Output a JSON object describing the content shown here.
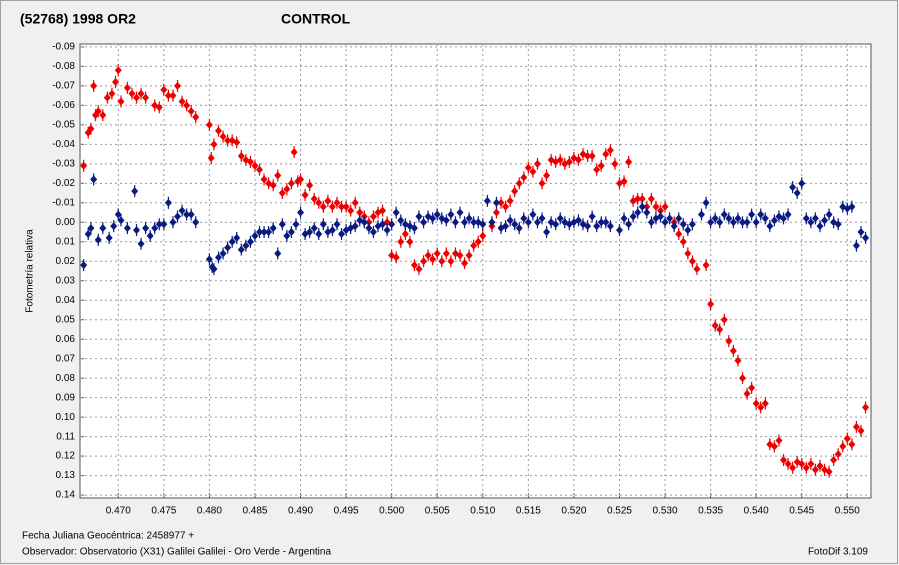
{
  "chart_data": {
    "type": "scatter",
    "ylabel": "Fotometría relativa",
    "footnotes": [
      "Fecha Juliana Geocéntrica: 2458977 +",
      "Observador: Observatorio (X31) Galilei Galilei - Oro Verde - Argentina"
    ],
    "credit": "FotoDif 3.109",
    "xlim": [
      0.4658,
      0.5526
    ],
    "ylim": [
      -0.0915,
      0.1415
    ],
    "y_inverted": true,
    "grid": true,
    "xticks": [
      {
        "value": 0.47,
        "label": "0.470"
      },
      0.475,
      {
        "value": 0.48,
        "label": "0.480"
      },
      0.485,
      {
        "value": 0.49,
        "label": "0.490"
      },
      0.495,
      {
        "value": 0.5,
        "label": "0.500"
      },
      0.505,
      {
        "value": 0.51,
        "label": "0.510"
      },
      0.515,
      {
        "value": 0.52,
        "label": "0.520"
      },
      0.525,
      {
        "value": 0.53,
        "label": "0.530"
      },
      0.535,
      {
        "value": 0.54,
        "label": "0.540"
      },
      0.545,
      {
        "value": 0.55,
        "label": "0.550"
      }
    ],
    "yticks": [
      -0.09,
      -0.08,
      -0.07,
      -0.06,
      -0.05,
      -0.04,
      -0.03,
      -0.02,
      -0.01,
      {
        "value": 0,
        "label": "0.00"
      },
      0.01,
      0.02,
      0.03,
      0.04,
      0.05,
      0.06,
      0.07,
      0.08,
      0.09,
      {
        "value": 0.1,
        "label": "0.10"
      },
      0.11,
      0.12,
      0.13,
      0.14
    ],
    "series": [
      {
        "name": "(52768) 1998 OR2",
        "color": "#ee0000",
        "x": [
          0.4662,
          0.4667,
          0.467,
          0.4673,
          0.4675,
          0.4678,
          0.4683,
          0.4688,
          0.4693,
          0.4697,
          0.47,
          0.4703,
          0.471,
          0.4715,
          0.472,
          0.4725,
          0.473,
          0.474,
          0.4745,
          0.475,
          0.4755,
          0.476,
          0.4765,
          0.477,
          0.4775,
          0.478,
          0.4785,
          0.48,
          0.4802,
          0.4805,
          0.481,
          0.4815,
          0.482,
          0.4825,
          0.483,
          0.4835,
          0.484,
          0.4845,
          0.485,
          0.4855,
          0.486,
          0.4865,
          0.487,
          0.4875,
          0.488,
          0.4885,
          0.489,
          0.4893,
          0.4897,
          0.49,
          0.4905,
          0.491,
          0.4915,
          0.492,
          0.4925,
          0.493,
          0.4935,
          0.494,
          0.4945,
          0.495,
          0.4955,
          0.496,
          0.4965,
          0.497,
          0.4975,
          0.498,
          0.4985,
          0.499,
          0.4995,
          0.5,
          0.5005,
          0.501,
          0.5015,
          0.502,
          0.5025,
          0.503,
          0.5035,
          0.504,
          0.5045,
          0.505,
          0.5055,
          0.506,
          0.5065,
          0.507,
          0.5075,
          0.508,
          0.5085,
          0.509,
          0.5095,
          0.51,
          0.511,
          0.5115,
          0.512,
          0.5125,
          0.513,
          0.5135,
          0.514,
          0.5145,
          0.515,
          0.5155,
          0.516,
          0.5165,
          0.517,
          0.5175,
          0.518,
          0.5185,
          0.519,
          0.5195,
          0.52,
          0.5205,
          0.521,
          0.5215,
          0.522,
          0.5225,
          0.523,
          0.5235,
          0.524,
          0.5245,
          0.525,
          0.5255,
          0.526,
          0.5265,
          0.527,
          0.5275,
          0.528,
          0.5285,
          0.529,
          0.5295,
          0.53,
          0.531,
          0.5315,
          0.532,
          0.5325,
          0.533,
          0.5335,
          0.5345,
          0.535,
          0.5355,
          0.536,
          0.5365,
          0.537,
          0.5375,
          0.538,
          0.5385,
          0.539,
          0.5395,
          0.54,
          0.5405,
          0.541,
          0.5415,
          0.542,
          0.5425,
          0.543,
          0.5435,
          0.544,
          0.5445,
          0.545,
          0.5455,
          0.546,
          0.5465,
          0.547,
          0.5475,
          0.548,
          0.5485,
          0.549,
          0.5495,
          0.55,
          0.5505,
          0.551,
          0.5515,
          0.552
        ],
        "values": [
          -0.029,
          -0.046,
          -0.048,
          -0.07,
          -0.055,
          -0.057,
          -0.055,
          -0.064,
          -0.066,
          -0.072,
          -0.078,
          -0.062,
          -0.069,
          -0.066,
          -0.064,
          -0.066,
          -0.064,
          -0.06,
          -0.059,
          -0.068,
          -0.065,
          -0.065,
          -0.07,
          -0.062,
          -0.06,
          -0.057,
          -0.054,
          -0.05,
          -0.033,
          -0.04,
          -0.047,
          -0.044,
          -0.042,
          -0.042,
          -0.041,
          -0.034,
          -0.032,
          -0.031,
          -0.029,
          -0.027,
          -0.022,
          -0.02,
          -0.019,
          -0.024,
          -0.015,
          -0.017,
          -0.02,
          -0.036,
          -0.021,
          -0.022,
          -0.014,
          -0.019,
          -0.012,
          -0.01,
          -0.008,
          -0.011,
          -0.008,
          -0.01,
          -0.008,
          -0.008,
          -0.006,
          -0.01,
          -0.005,
          -0.003,
          0.0,
          -0.003,
          -0.005,
          -0.006,
          0.0,
          0.017,
          0.018,
          0.01,
          0.006,
          0.01,
          0.022,
          0.024,
          0.02,
          0.017,
          0.019,
          0.016,
          0.02,
          0.016,
          0.02,
          0.016,
          0.017,
          0.021,
          0.017,
          0.012,
          0.01,
          0.007,
          0.002,
          -0.005,
          -0.01,
          -0.008,
          -0.011,
          -0.016,
          -0.02,
          -0.023,
          -0.028,
          -0.026,
          -0.03,
          -0.02,
          -0.024,
          -0.032,
          -0.031,
          -0.032,
          -0.03,
          -0.031,
          -0.033,
          -0.032,
          -0.035,
          -0.034,
          -0.034,
          -0.027,
          -0.029,
          -0.035,
          -0.037,
          -0.03,
          -0.02,
          -0.021,
          -0.031,
          -0.011,
          -0.012,
          -0.012,
          -0.008,
          -0.012,
          -0.008,
          -0.006,
          -0.008,
          0.0,
          0.006,
          0.01,
          0.016,
          0.02,
          0.024,
          0.022,
          0.042,
          0.053,
          0.055,
          0.05,
          0.061,
          0.066,
          0.071,
          0.08,
          0.088,
          0.085,
          0.093,
          0.095,
          0.093,
          0.114,
          0.115,
          0.112,
          0.122,
          0.124,
          0.126,
          0.123,
          0.124,
          0.126,
          0.124,
          0.127,
          0.125,
          0.127,
          0.128,
          0.122,
          0.119,
          0.115,
          0.111,
          0.114,
          0.105,
          0.107,
          0.095
        ]
      },
      {
        "name": "CONTROL",
        "color": "#0a1a80",
        "x": [
          0.4662,
          0.4667,
          0.467,
          0.4673,
          0.4678,
          0.4683,
          0.469,
          0.4695,
          0.47,
          0.4703,
          0.471,
          0.4718,
          0.472,
          0.4725,
          0.473,
          0.4735,
          0.474,
          0.4745,
          0.475,
          0.4755,
          0.476,
          0.4765,
          0.477,
          0.4775,
          0.478,
          0.4785,
          0.48,
          0.4803,
          0.4805,
          0.481,
          0.4815,
          0.482,
          0.4825,
          0.483,
          0.4835,
          0.484,
          0.4845,
          0.485,
          0.4855,
          0.486,
          0.4865,
          0.487,
          0.4875,
          0.488,
          0.4885,
          0.489,
          0.4895,
          0.49,
          0.4905,
          0.491,
          0.4915,
          0.492,
          0.4925,
          0.493,
          0.4935,
          0.494,
          0.4945,
          0.495,
          0.4955,
          0.496,
          0.4965,
          0.497,
          0.4975,
          0.498,
          0.4985,
          0.499,
          0.4995,
          0.5,
          0.5005,
          0.501,
          0.5015,
          0.502,
          0.5025,
          0.503,
          0.5035,
          0.504,
          0.5045,
          0.505,
          0.5055,
          0.506,
          0.5065,
          0.507,
          0.5075,
          0.508,
          0.5085,
          0.509,
          0.5095,
          0.51,
          0.5105,
          0.511,
          0.5115,
          0.512,
          0.5125,
          0.513,
          0.5135,
          0.514,
          0.5145,
          0.515,
          0.5155,
          0.516,
          0.5165,
          0.517,
          0.5175,
          0.518,
          0.5185,
          0.519,
          0.5195,
          0.52,
          0.5205,
          0.521,
          0.5215,
          0.522,
          0.5225,
          0.523,
          0.5235,
          0.524,
          0.525,
          0.5255,
          0.526,
          0.5265,
          0.527,
          0.5275,
          0.528,
          0.5285,
          0.529,
          0.5295,
          0.53,
          0.5305,
          0.531,
          0.5315,
          0.532,
          0.5325,
          0.533,
          0.534,
          0.5345,
          0.535,
          0.5355,
          0.536,
          0.5365,
          0.537,
          0.5375,
          0.538,
          0.5385,
          0.539,
          0.5395,
          0.54,
          0.5405,
          0.541,
          0.5415,
          0.542,
          0.5425,
          0.543,
          0.5435,
          0.544,
          0.5445,
          0.545,
          0.5455,
          0.546,
          0.5465,
          0.547,
          0.5475,
          0.548,
          0.5485,
          0.549,
          0.5495,
          0.55,
          0.5505,
          0.551,
          0.5515,
          0.552
        ],
        "values": [
          0.022,
          0.006,
          0.003,
          -0.022,
          0.009,
          0.003,
          0.008,
          0.002,
          -0.004,
          -0.001,
          0.003,
          -0.016,
          0.004,
          0.011,
          0.003,
          0.007,
          0.003,
          0.001,
          0.001,
          -0.01,
          0.0,
          -0.003,
          -0.006,
          -0.004,
          -0.004,
          0.0,
          0.019,
          0.023,
          0.024,
          0.018,
          0.016,
          0.013,
          0.01,
          0.008,
          0.014,
          0.012,
          0.01,
          0.007,
          0.005,
          0.005,
          0.005,
          0.003,
          0.016,
          0.001,
          0.007,
          0.005,
          0.001,
          -0.005,
          0.006,
          0.005,
          0.003,
          0.006,
          0.001,
          0.005,
          0.004,
          0.001,
          0.006,
          0.004,
          0.003,
          0.002,
          -0.001,
          0.0,
          0.003,
          0.005,
          0.002,
          0.001,
          0.004,
          0.001,
          -0.005,
          -0.001,
          0.001,
          0.002,
          0.003,
          -0.003,
          0.0,
          -0.003,
          -0.002,
          -0.004,
          -0.002,
          -0.001,
          -0.004,
          0.0,
          -0.005,
          0.0,
          -0.002,
          0.0,
          0.0,
          0.001,
          -0.011,
          0.0,
          -0.01,
          0.003,
          0.002,
          -0.001,
          0.001,
          0.003,
          -0.002,
          0.0,
          -0.004,
          0.0,
          -0.002,
          0.005,
          0.0,
          0.001,
          -0.002,
          0.0,
          0.001,
          0.0,
          -0.001,
          0.001,
          0.002,
          -0.003,
          0.002,
          0.0,
          0.0,
          0.002,
          0.004,
          -0.002,
          0.001,
          -0.003,
          -0.005,
          -0.008,
          -0.005,
          0.0,
          -0.002,
          -0.003,
          0.0,
          -0.002,
          0.002,
          -0.002,
          0.001,
          0.004,
          0.001,
          -0.004,
          -0.01,
          0.0,
          -0.002,
          0.0,
          -0.004,
          -0.002,
          0.0,
          -0.002,
          0.0,
          0.0,
          -0.004,
          0.0,
          -0.004,
          -0.002,
          0.002,
          -0.001,
          -0.003,
          -0.002,
          -0.004,
          -0.018,
          -0.015,
          -0.02,
          -0.002,
          0.0,
          -0.002,
          0.002,
          -0.001,
          -0.004,
          0.0,
          0.001,
          -0.008,
          -0.007,
          -0.008,
          0.012,
          0.005,
          0.008
        ]
      }
    ]
  }
}
